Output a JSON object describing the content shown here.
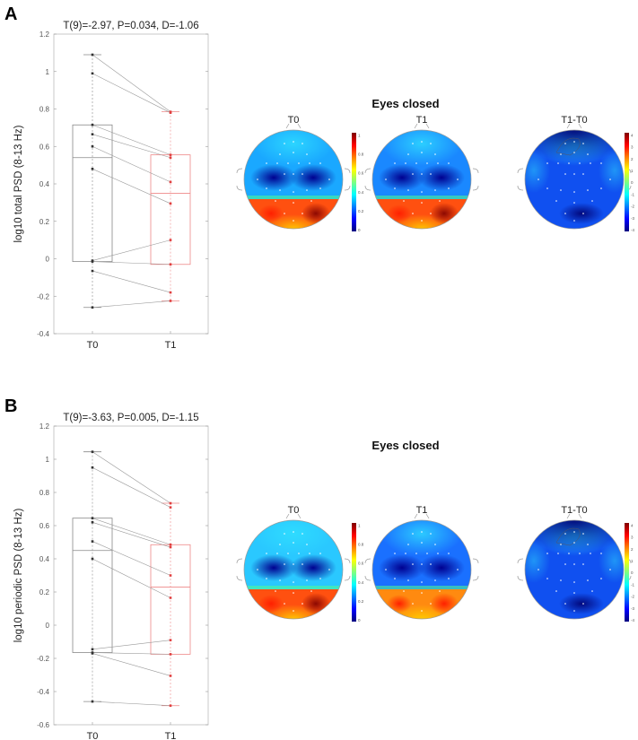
{
  "panels": [
    {
      "letter": "A",
      "section_title": "Eyes closed",
      "topomap_titles": [
        "T0",
        "T1",
        "T1-T0"
      ],
      "colorbars": [
        {
          "min": 0,
          "max": 1,
          "ticks": [
            "0",
            "0.2",
            "0.4",
            "0.6",
            "0.8",
            "1"
          ]
        },
        {
          "min": -4,
          "max": 4,
          "ticks": [
            "-4",
            "-3",
            "-2",
            "-1",
            "0",
            "1",
            "2",
            "3",
            "4"
          ]
        }
      ],
      "colormap": "jet"
    },
    {
      "letter": "B",
      "section_title": "Eyes closed",
      "topomap_titles": [
        "T0",
        "T1",
        "T1-T0"
      ],
      "colorbars": [
        {
          "min": 0,
          "max": 1,
          "ticks": [
            "0",
            "0.2",
            "0.4",
            "0.6",
            "0.8",
            "1"
          ]
        },
        {
          "min": -4,
          "max": 4,
          "ticks": [
            "-4",
            "-3",
            "-2",
            "-1",
            "0",
            "1",
            "2",
            "3",
            "4"
          ]
        }
      ],
      "colormap": "jet"
    }
  ],
  "chart_data": [
    {
      "type": "box",
      "title": "T(9)=-2.97, P=0.034, D=-1.06",
      "xlabel": "",
      "ylabel": "log10 total PSD (8-13 Hz)",
      "categories": [
        "T0",
        "T1"
      ],
      "ylim": [
        -0.4,
        1.2
      ],
      "yticks": [
        "-0.4",
        "-0.2",
        "0",
        "0.2",
        "0.4",
        "0.6",
        "0.8",
        "1",
        "1.2"
      ],
      "colors": {
        "T0": "#333333",
        "T1": "#e04040"
      },
      "boxes": [
        {
          "min": -0.26,
          "q1": -0.015,
          "median": 0.54,
          "q3": 0.715,
          "max": 1.09
        },
        {
          "min": -0.225,
          "q1": -0.03,
          "median": 0.35,
          "q3": 0.555,
          "max": 0.785
        }
      ],
      "paired": [
        [
          1.09,
          0.785
        ],
        [
          0.99,
          0.78
        ],
        [
          0.715,
          0.555
        ],
        [
          0.665,
          0.54
        ],
        [
          0.6,
          0.41
        ],
        [
          0.48,
          0.295
        ],
        [
          -0.01,
          0.1
        ],
        [
          -0.015,
          -0.03
        ],
        [
          -0.065,
          -0.18
        ],
        [
          -0.26,
          -0.225
        ]
      ],
      "grid": false
    },
    {
      "type": "box",
      "title": "T(9)=-3.63, P=0.005, D=-1.15",
      "xlabel": "",
      "ylabel": "log10 periodic PSD (8-13 Hz)",
      "categories": [
        "T0",
        "T1"
      ],
      "ylim": [
        -0.6,
        1.2
      ],
      "yticks": [
        "-0.6",
        "-0.4",
        "-0.2",
        "0",
        "0.2",
        "0.4",
        "0.6",
        "0.8",
        "1",
        "1.2"
      ],
      "colors": {
        "T0": "#333333",
        "T1": "#e04040"
      },
      "boxes": [
        {
          "min": -0.46,
          "q1": -0.165,
          "median": 0.45,
          "q3": 0.645,
          "max": 1.045
        },
        {
          "min": -0.485,
          "q1": -0.175,
          "median": 0.23,
          "q3": 0.485,
          "max": 0.735
        }
      ],
      "paired": [
        [
          1.045,
          0.735
        ],
        [
          0.95,
          0.71
        ],
        [
          0.645,
          0.485
        ],
        [
          0.62,
          0.47
        ],
        [
          0.505,
          0.3
        ],
        [
          0.4,
          0.165
        ],
        [
          -0.145,
          -0.09
        ],
        [
          -0.165,
          -0.175
        ],
        [
          -0.17,
          -0.305
        ],
        [
          -0.46,
          -0.485
        ]
      ],
      "grid": false
    }
  ]
}
